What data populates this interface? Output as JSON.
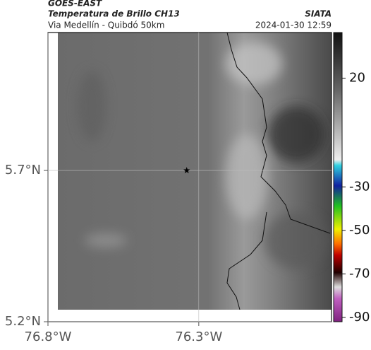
{
  "header": {
    "source": "GOES-EAST",
    "title": "Temperatura de Brillo CH13",
    "subtitle": "Via Medellín - Quibdó 50km",
    "brand": "SIATA",
    "datetime": "2024-01-30 12:59"
  },
  "map": {
    "xlim": [
      -76.8,
      -75.86
    ],
    "ylim": [
      5.2,
      6.156
    ],
    "xticks": [
      {
        "value": -76.8,
        "label": "76.8°W"
      },
      {
        "value": -76.3,
        "label": "76.3°W"
      }
    ],
    "yticks": [
      {
        "value": 5.2,
        "label": "5.2°N"
      },
      {
        "value": 5.7,
        "label": "5.7°N"
      }
    ],
    "grid": true,
    "marker": {
      "lon": -76.34,
      "lat": 5.7
    }
  },
  "colorbar": {
    "lim": [
      -92,
      41
    ],
    "ticks": [
      20,
      -30,
      -50,
      -70,
      -90
    ]
  }
}
